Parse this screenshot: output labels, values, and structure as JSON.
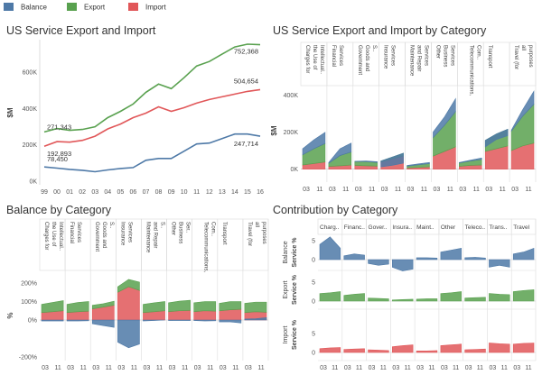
{
  "legend": [
    {
      "label": "Balance",
      "color": "#4e79a7"
    },
    {
      "label": "Export",
      "color": "#59a14f"
    },
    {
      "label": "Import",
      "color": "#e15759"
    }
  ],
  "titles": {
    "p1": "US Service Export and Import",
    "p2": "US Service Export and Import by Category",
    "p3": "Balance by Category",
    "p4": "Contribution by Category"
  },
  "chart_data": [
    {
      "type": "line",
      "title": "US Service Export and Import",
      "ylabel": "$M",
      "x": [
        "99",
        "00",
        "01",
        "02",
        "03",
        "04",
        "05",
        "06",
        "07",
        "08",
        "09",
        "10",
        "11",
        "12",
        "13",
        "14",
        "15",
        "16"
      ],
      "yticks": [
        "0K",
        "200K",
        "400K",
        "600K"
      ],
      "ylim": [
        -20000,
        780000
      ],
      "series": [
        {
          "name": "Export",
          "color": "#59a14f",
          "values": [
            271343,
            290000,
            280000,
            285000,
            300000,
            350000,
            385000,
            425000,
            490000,
            535000,
            510000,
            570000,
            635000,
            660000,
            700000,
            740000,
            755000,
            752368
          ]
        },
        {
          "name": "Import",
          "color": "#e15759",
          "values": [
            192893,
            218000,
            215000,
            225000,
            248000,
            288000,
            315000,
            350000,
            375000,
            410000,
            385000,
            405000,
            430000,
            450000,
            465000,
            480000,
            495000,
            504654
          ]
        },
        {
          "name": "Balance",
          "color": "#4e79a7",
          "values": [
            78450,
            72000,
            65000,
            60000,
            52000,
            62000,
            70000,
            75000,
            115000,
            125000,
            125000,
            165000,
            205000,
            210000,
            235000,
            260000,
            260000,
            247714
          ]
        }
      ],
      "labels": [
        "752,368",
        "504,654",
        "247,714",
        "271,343",
        "192,893",
        "78,450"
      ]
    },
    {
      "type": "area",
      "title": "US Service Export and Import by Category",
      "ylabel": "$M",
      "categories": [
        "Charges for the Use of Intellectual..",
        "Financial Services",
        "Government Goods and S..",
        "Insurance Services",
        "Maintenance and Repair Services n.i.e",
        "Other Business Services",
        "Telecommunications, Com..",
        "Transport",
        "Travel (for all purposes inc.."
      ],
      "yticks": [
        "0K",
        "200K",
        "400K"
      ],
      "ylim": [
        -70000,
        450000
      ],
      "xticks": [
        "03",
        "11"
      ],
      "series": [
        {
          "name": "Import",
          "color": "#e15759",
          "values": [
            [
              22,
              30,
              38
            ],
            [
              14,
              18,
              22
            ],
            [
              20,
              18,
              16
            ],
            [
              38,
              55,
              70
            ],
            [
              6,
              9,
              12
            ],
            [
              70,
              95,
              120
            ],
            [
              15,
              20,
              22
            ],
            [
              95,
              110,
              125
            ],
            [
              100,
              125,
              140
            ]
          ]
        },
        {
          "name": "Export",
          "color": "#59a14f",
          "values": [
            [
              55,
              80,
              100
            ],
            [
              18,
              55,
              70
            ],
            [
              21,
              22,
              20
            ],
            [
              6,
              10,
              16
            ],
            [
              10,
              14,
              18
            ],
            [
              100,
              140,
              190
            ],
            [
              18,
              24,
              30
            ],
            [
              60,
              80,
              90
            ],
            [
              105,
              160,
              210
            ]
          ]
        },
        {
          "name": "Balance",
          "color": "#4e79a7",
          "values": [
            [
              33,
              48,
              60
            ],
            [
              4,
              37,
              48
            ],
            [
              1,
              4,
              4
            ],
            [
              -32,
              -45,
              -54
            ],
            [
              4,
              5,
              6
            ],
            [
              30,
              45,
              70
            ],
            [
              3,
              4,
              8
            ],
            [
              -35,
              -30,
              -35
            ],
            [
              5,
              35,
              70
            ]
          ]
        }
      ]
    },
    {
      "type": "area",
      "title": "Balance by Category",
      "ylabel": "%",
      "categories": [
        "Charges for the Use of Intellectual..",
        "Financial Services",
        "Government Goods and S..",
        "Insurance Services",
        "Maintenance and Repair S..",
        "Other Business Ser..",
        "Telecommunications, Com..",
        "Transport",
        "Travel (for all purposes inc.."
      ],
      "yticks": [
        "200%",
        "100%",
        "0%",
        "-200%"
      ],
      "ylim": [
        -230,
        230
      ],
      "xticks": [
        "03",
        "11"
      ]
    },
    {
      "type": "area",
      "title": "Contribution by Category",
      "rows": [
        {
          "label1": "Balance",
          "label2": "Service %",
          "yticks": [
            "5",
            "0"
          ]
        },
        {
          "label1": "Export",
          "label2": "Service %",
          "yticks": [
            "5",
            "0"
          ]
        },
        {
          "label1": "Import",
          "label2": "Service %",
          "yticks": [
            "5",
            "0"
          ]
        }
      ],
      "categories": [
        "Charg..",
        "Financ..",
        "Gover..",
        "Insura..",
        "Maint..",
        "Other",
        "Teleco..",
        "Trans..",
        "Travel"
      ],
      "xticks": [
        "03",
        "11"
      ]
    }
  ]
}
